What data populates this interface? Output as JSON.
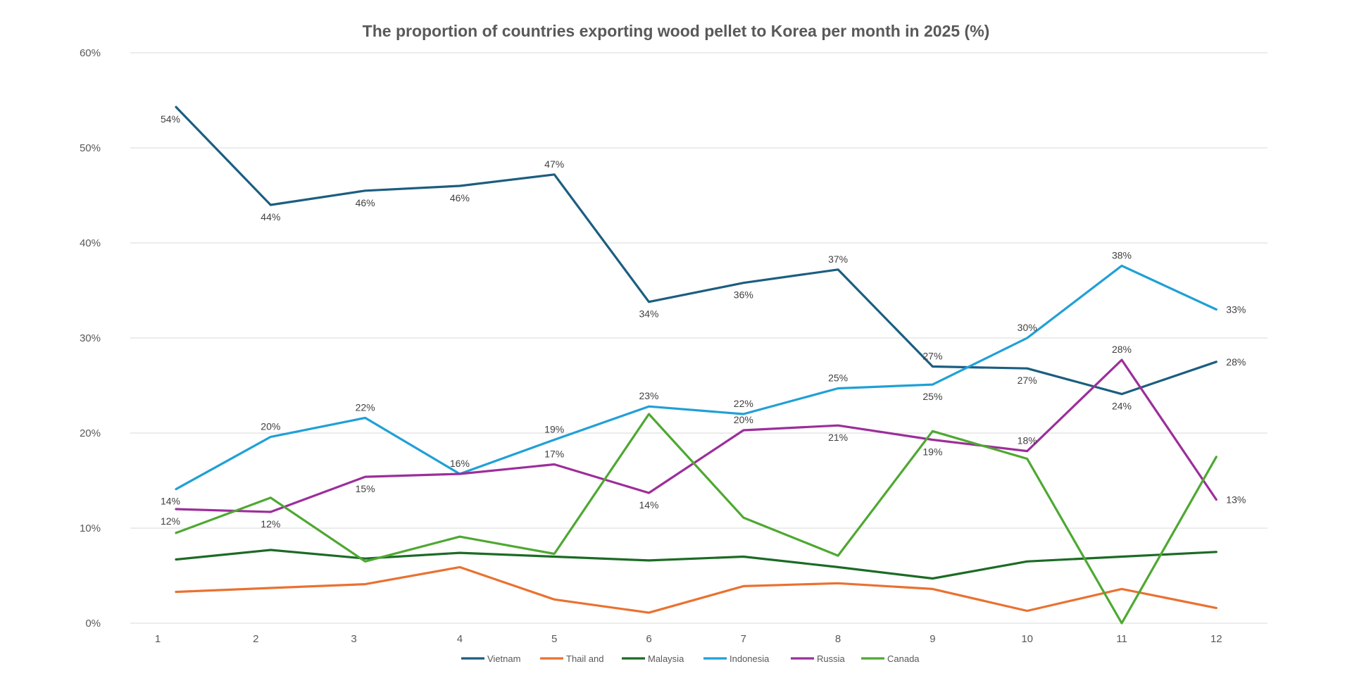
{
  "chart_data": {
    "type": "line",
    "title": "The proportion of countries exporting wood pellet to Korea per month in 2025 (%)",
    "xlabel": "",
    "ylabel": "",
    "categories": [
      "1",
      "2",
      "3",
      "4",
      "5",
      "6",
      "7",
      "8",
      "9",
      "10",
      "11",
      "12"
    ],
    "ylim": [
      0,
      60
    ],
    "yticks": [
      0,
      10,
      20,
      30,
      40,
      50,
      60
    ],
    "ytick_labels": [
      "0%",
      "10%",
      "20%",
      "30%",
      "40%",
      "50%",
      "60%"
    ],
    "grid": true,
    "legend_position": "bottom",
    "series": [
      {
        "name": "Vietnam",
        "color": "#1b5e80",
        "values": [
          54.3,
          44.0,
          45.5,
          46.0,
          47.2,
          33.8,
          35.8,
          37.2,
          27.0,
          26.8,
          24.1,
          27.5
        ],
        "labels": [
          "54%",
          "44%",
          "46%",
          "46%",
          "47%",
          "34%",
          "36%",
          "37%",
          "27%",
          "27%",
          "24%",
          "28%"
        ],
        "label_pos": [
          "below",
          "below",
          "below",
          "below",
          "above",
          "below",
          "below",
          "above",
          "above",
          "below",
          "below",
          "right"
        ]
      },
      {
        "name": "Thail and",
        "color": "#ea7130",
        "values": [
          3.3,
          3.7,
          4.1,
          5.9,
          2.5,
          1.1,
          3.9,
          4.2,
          3.6,
          1.3,
          3.6,
          1.6
        ],
        "labels": [
          "",
          "",
          "",
          "",
          "",
          "",
          "",
          "",
          "",
          "",
          "",
          ""
        ],
        "label_pos": [
          "",
          "",
          "",
          "",
          "",
          "",
          "",
          "",
          "",
          "",
          "",
          ""
        ]
      },
      {
        "name": "Malaysia",
        "color": "#1c6b25",
        "values": [
          6.7,
          7.7,
          6.8,
          7.4,
          7.0,
          6.6,
          7.0,
          5.9,
          4.7,
          6.5,
          7.0,
          7.5
        ],
        "labels": [
          "",
          "",
          "",
          "",
          "",
          "",
          "",
          "",
          "",
          "",
          "",
          ""
        ],
        "label_pos": [
          "",
          "",
          "",
          "",
          "",
          "",
          "",
          "",
          "",
          "",
          "",
          ""
        ]
      },
      {
        "name": "Indonesia",
        "color": "#20a0d6",
        "values": [
          14.1,
          19.6,
          21.6,
          15.7,
          19.3,
          22.8,
          22.0,
          24.7,
          25.1,
          30.0,
          37.6,
          33.0
        ],
        "labels": [
          "14%",
          "20%",
          "22%",
          "16%",
          "19%",
          "23%",
          "22%",
          "25%",
          "25%",
          "30%",
          "38%",
          "33%"
        ],
        "label_pos": [
          "below",
          "above",
          "above",
          "above",
          "above",
          "above",
          "above",
          "above",
          "below",
          "above",
          "above",
          "right"
        ]
      },
      {
        "name": "Russia",
        "color": "#9c2e9a",
        "values": [
          12.0,
          11.7,
          15.4,
          15.7,
          16.7,
          13.7,
          20.3,
          20.8,
          19.3,
          18.1,
          27.7,
          13.0
        ],
        "labels": [
          "12%",
          "12%",
          "15%",
          "",
          "17%",
          "14%",
          "20%",
          "21%",
          "19%",
          "18%",
          "28%",
          "13%"
        ],
        "label_pos": [
          "below",
          "below",
          "below",
          "",
          "above",
          "below",
          "above",
          "below",
          "below",
          "above",
          "above",
          "right"
        ]
      },
      {
        "name": "Canada",
        "color": "#4ea832",
        "values": [
          9.5,
          13.2,
          6.5,
          9.1,
          7.3,
          22.0,
          11.1,
          7.1,
          20.2,
          17.3,
          0.0,
          17.5
        ],
        "labels": [
          "",
          "",
          "",
          "",
          "",
          "",
          "",
          "",
          "",
          "",
          "",
          ""
        ],
        "label_pos": [
          "",
          "",
          "",
          "",
          "",
          "",
          "",
          "",
          "",
          "",
          "",
          ""
        ]
      }
    ]
  }
}
